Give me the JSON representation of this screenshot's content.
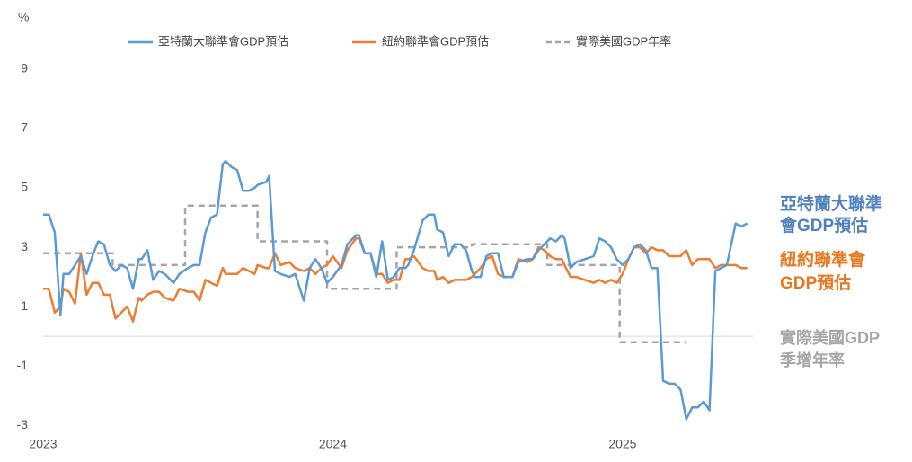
{
  "chart_data": {
    "type": "line",
    "y_label": "%",
    "xlim": [
      2023,
      2025.45
    ],
    "xticks": [
      2023,
      2024,
      2025
    ],
    "ylim": [
      -3.3,
      10
    ],
    "yticks": [
      -3,
      -1,
      1,
      3,
      5,
      7,
      9
    ],
    "zero_line": true,
    "grid": false,
    "series": [
      {
        "name": "亞特蘭大聯準會GDP預估",
        "color": "#5b9bd5",
        "dashed": false,
        "x": [
          2023.0,
          2023.02,
          2023.04,
          2023.06,
          2023.07,
          2023.09,
          2023.11,
          2023.13,
          2023.15,
          2023.17,
          2023.19,
          2023.21,
          2023.23,
          2023.25,
          2023.27,
          2023.29,
          2023.31,
          2023.33,
          2023.34,
          2023.36,
          2023.38,
          2023.4,
          2023.42,
          2023.45,
          2023.47,
          2023.5,
          2023.52,
          2023.54,
          2023.56,
          2023.58,
          2023.6,
          2023.62,
          2023.63,
          2023.65,
          2023.67,
          2023.69,
          2023.71,
          2023.73,
          2023.74,
          2023.77,
          2023.78,
          2023.8,
          2023.82,
          2023.85,
          2023.87,
          2023.9,
          2023.92,
          2023.94,
          2023.96,
          2023.98,
          2024.0,
          2024.03,
          2024.05,
          2024.08,
          2024.09,
          2024.11,
          2024.13,
          2024.15,
          2024.17,
          2024.19,
          2024.21,
          2024.23,
          2024.25,
          2024.26,
          2024.28,
          2024.31,
          2024.33,
          2024.35,
          2024.36,
          2024.38,
          2024.4,
          2024.42,
          2024.44,
          2024.46,
          2024.48,
          2024.49,
          2024.51,
          2024.53,
          2024.55,
          2024.57,
          2024.59,
          2024.62,
          2024.64,
          2024.67,
          2024.69,
          2024.71,
          2024.73,
          2024.75,
          2024.77,
          2024.79,
          2024.8,
          2024.82,
          2024.84,
          2024.87,
          2024.9,
          2024.92,
          2024.94,
          2024.96,
          2024.98,
          2025.0,
          2025.02,
          2025.04,
          2025.06,
          2025.08,
          2025.1,
          2025.12,
          2025.14,
          2025.16,
          2025.18,
          2025.2,
          2025.22,
          2025.24,
          2025.26,
          2025.28,
          2025.3,
          2025.32,
          2025.34,
          2025.36,
          2025.39,
          2025.41,
          2025.43
        ],
        "values": [
          4.1,
          4.1,
          3.5,
          0.7,
          2.1,
          2.1,
          2.4,
          2.7,
          2.1,
          2.7,
          3.2,
          3.1,
          2.4,
          2.2,
          2.4,
          2.3,
          1.6,
          2.6,
          2.6,
          2.9,
          1.9,
          2.2,
          2.1,
          1.8,
          2.1,
          2.3,
          2.4,
          2.4,
          3.5,
          4.0,
          4.1,
          5.8,
          5.9,
          5.7,
          5.6,
          4.9,
          4.9,
          5.0,
          5.1,
          5.2,
          5.4,
          2.2,
          2.1,
          2.0,
          2.1,
          1.2,
          2.3,
          2.6,
          2.3,
          1.8,
          2.0,
          2.4,
          3.1,
          3.4,
          3.4,
          2.8,
          2.8,
          2.0,
          3.2,
          1.9,
          2.0,
          2.3,
          2.3,
          2.4,
          2.9,
          3.9,
          4.1,
          4.1,
          3.6,
          3.5,
          2.7,
          3.1,
          3.1,
          2.9,
          2.2,
          2.0,
          2.0,
          2.7,
          2.8,
          2.8,
          2.0,
          2.0,
          2.5,
          2.6,
          2.6,
          2.9,
          3.1,
          3.3,
          3.2,
          3.4,
          3.3,
          2.3,
          2.5,
          2.6,
          2.7,
          3.3,
          3.2,
          3.0,
          2.6,
          2.4,
          2.6,
          3.0,
          3.1,
          2.9,
          2.3,
          2.3,
          -1.5,
          -1.6,
          -1.6,
          -1.8,
          -2.8,
          -2.4,
          -2.4,
          -2.2,
          -2.5,
          2.2,
          2.3,
          2.4,
          3.8,
          3.7,
          3.8
        ]
      },
      {
        "name": "紐約聯準會GDP預估",
        "color": "#ed7d31",
        "dashed": false,
        "x": [
          2023.0,
          2023.02,
          2023.04,
          2023.06,
          2023.07,
          2023.09,
          2023.11,
          2023.13,
          2023.15,
          2023.17,
          2023.19,
          2023.21,
          2023.23,
          2023.25,
          2023.27,
          2023.29,
          2023.31,
          2023.33,
          2023.34,
          2023.36,
          2023.38,
          2023.4,
          2023.42,
          2023.45,
          2023.47,
          2023.5,
          2023.52,
          2023.54,
          2023.56,
          2023.58,
          2023.6,
          2023.62,
          2023.63,
          2023.65,
          2023.67,
          2023.69,
          2023.71,
          2023.73,
          2023.74,
          2023.77,
          2023.78,
          2023.8,
          2023.82,
          2023.85,
          2023.87,
          2023.9,
          2023.92,
          2023.94,
          2023.96,
          2023.98,
          2024.0,
          2024.03,
          2024.05,
          2024.08,
          2024.09,
          2024.11,
          2024.13,
          2024.15,
          2024.17,
          2024.19,
          2024.21,
          2024.23,
          2024.25,
          2024.26,
          2024.28,
          2024.31,
          2024.33,
          2024.35,
          2024.36,
          2024.38,
          2024.4,
          2024.42,
          2024.44,
          2024.46,
          2024.48,
          2024.49,
          2024.51,
          2024.53,
          2024.55,
          2024.57,
          2024.59,
          2024.62,
          2024.64,
          2024.67,
          2024.69,
          2024.71,
          2024.73,
          2024.75,
          2024.77,
          2024.79,
          2024.8,
          2024.82,
          2024.84,
          2024.87,
          2024.9,
          2024.92,
          2024.94,
          2024.96,
          2024.98,
          2025.0,
          2025.02,
          2025.04,
          2025.06,
          2025.08,
          2025.1,
          2025.12,
          2025.14,
          2025.16,
          2025.18,
          2025.2,
          2025.22,
          2025.24,
          2025.26,
          2025.28,
          2025.3,
          2025.32,
          2025.34,
          2025.36,
          2025.39,
          2025.41,
          2025.43
        ],
        "values": [
          1.6,
          1.6,
          0.8,
          1.0,
          1.6,
          1.5,
          1.1,
          2.8,
          1.4,
          1.8,
          1.8,
          1.4,
          1.4,
          0.6,
          0.8,
          1.0,
          0.5,
          1.3,
          1.2,
          1.4,
          1.5,
          1.5,
          1.3,
          1.2,
          1.6,
          1.5,
          1.5,
          1.2,
          1.9,
          1.8,
          1.7,
          2.3,
          2.1,
          2.1,
          2.1,
          2.3,
          2.2,
          2.1,
          2.4,
          2.3,
          2.3,
          2.8,
          2.4,
          2.5,
          2.3,
          2.2,
          2.3,
          2.1,
          2.3,
          2.4,
          2.7,
          2.3,
          2.9,
          3.3,
          3.3,
          2.8,
          2.8,
          2.1,
          2.1,
          1.8,
          1.9,
          1.9,
          2.6,
          2.6,
          2.7,
          2.3,
          2.2,
          2.2,
          1.9,
          2.0,
          1.8,
          1.9,
          1.9,
          1.9,
          2.0,
          2.1,
          2.3,
          2.6,
          2.7,
          2.1,
          2.0,
          2.0,
          2.6,
          2.5,
          2.6,
          3.0,
          2.9,
          2.7,
          2.6,
          2.6,
          2.4,
          2.0,
          2.0,
          1.9,
          1.8,
          1.9,
          1.8,
          1.9,
          1.8,
          2.1,
          2.6,
          3.0,
          3.0,
          2.8,
          3.0,
          2.9,
          2.9,
          2.7,
          2.7,
          2.7,
          2.9,
          2.4,
          2.6,
          2.6,
          2.6,
          2.3,
          2.4,
          2.4,
          2.4,
          2.3,
          2.3
        ]
      },
      {
        "name": "實際美國GDP年率",
        "color": "#a5a5a5",
        "dashed": true,
        "x": [
          2023.0,
          2023.24,
          2023.24,
          2023.49,
          2023.49,
          2023.74,
          2023.74,
          2023.98,
          2023.98,
          2024.22,
          2024.22,
          2024.48,
          2024.48,
          2024.74,
          2024.74,
          2024.99,
          2024.99,
          2025.22
        ],
        "values": [
          2.8,
          2.8,
          2.4,
          2.4,
          4.4,
          4.4,
          3.2,
          3.2,
          1.6,
          1.6,
          3.0,
          3.0,
          3.1,
          3.1,
          2.4,
          2.4,
          -0.2,
          -0.2
        ]
      }
    ],
    "annotations": [
      {
        "lines": [
          "亞特蘭大聯準",
          "會GDP預估"
        ],
        "color": "#4f81bd"
      },
      {
        "lines": [
          "紐約聯準會",
          "GDP預估"
        ],
        "color": "#e8771f"
      },
      {
        "lines": [
          "實際美國GDP",
          "季增年率"
        ],
        "color": "#a6a6a6"
      }
    ]
  }
}
